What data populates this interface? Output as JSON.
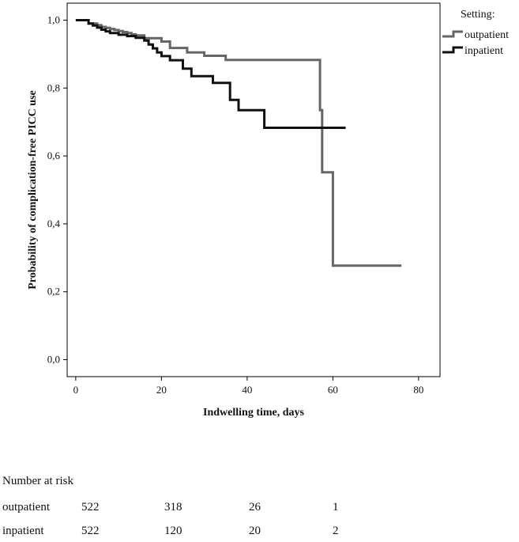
{
  "chart_data": {
    "type": "line",
    "step": true,
    "xlabel": "Indwelling time, days",
    "ylabel": "Probability of complication-free PICC use",
    "xlim": [
      -2,
      85
    ],
    "ylim": [
      -0.05,
      1.05
    ],
    "xticks": [
      0,
      20,
      40,
      60,
      80
    ],
    "xtick_labels": [
      "0",
      "20",
      "40",
      "60",
      "80"
    ],
    "yticks": [
      0.0,
      0.2,
      0.4,
      0.6,
      0.8,
      1.0
    ],
    "ytick_labels": [
      "0,0",
      "0,2",
      "0,4",
      "0,6",
      "0,8",
      "1,0"
    ],
    "legend_title": "Setting:",
    "legend_position": "top-right, outside plot",
    "series": [
      {
        "name": "outpatient",
        "color": "#666666",
        "x": [
          0,
          3,
          5,
          6,
          7,
          8,
          9,
          10,
          11,
          12,
          13,
          14,
          16,
          20,
          22,
          26,
          30,
          35,
          57,
          57.5,
          59,
          60,
          76
        ],
        "y": [
          1.0,
          0.99,
          0.985,
          0.98,
          0.977,
          0.974,
          0.971,
          0.968,
          0.965,
          0.962,
          0.958,
          0.955,
          0.947,
          0.937,
          0.918,
          0.905,
          0.895,
          0.883,
          0.735,
          0.552,
          0.552,
          0.277,
          0.277
        ]
      },
      {
        "name": "inpatient",
        "color": "#111111",
        "x": [
          0,
          3,
          4,
          5,
          6,
          7,
          8,
          10,
          12,
          14,
          16,
          17,
          18,
          19,
          20,
          22,
          25,
          27,
          28,
          32,
          36,
          38,
          44,
          63
        ],
        "y": [
          1.0,
          0.99,
          0.984,
          0.978,
          0.972,
          0.967,
          0.962,
          0.957,
          0.953,
          0.948,
          0.94,
          0.928,
          0.917,
          0.905,
          0.894,
          0.882,
          0.857,
          0.835,
          0.835,
          0.815,
          0.765,
          0.735,
          0.683,
          0.683
        ]
      }
    ]
  },
  "risk_table": {
    "title": "Number at risk",
    "rows": [
      {
        "label": "outpatient",
        "values": [
          "522",
          "318",
          "26",
          "1"
        ]
      },
      {
        "label": "inpatient",
        "values": [
          "522",
          "120",
          "20",
          "2"
        ]
      }
    ]
  }
}
